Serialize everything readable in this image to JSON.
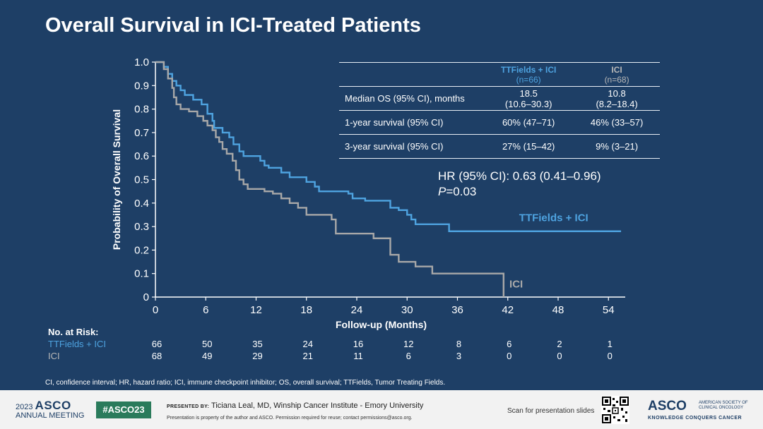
{
  "slide": {
    "title": "Overall Survival in ICI-Treated Patients",
    "hr_line": "HR (95% CI): 0.63 (0.41–0.96)",
    "p_label": "P",
    "p_value": "=0.03",
    "footnote": "CI, confidence interval; HR, hazard ratio; ICI, immune checkpoint inhibitor; OS, overall survival; TTFields, Tumor Treating Fields."
  },
  "stats_table": {
    "headers": [
      {
        "name": "TTFields + ICI",
        "n": "(n=66)"
      },
      {
        "name": "ICI",
        "n": "(n=68)"
      }
    ],
    "rows": [
      {
        "label": "Median OS (95% CI), months",
        "a": "18.5",
        "a2": "(10.6–30.3)",
        "b": "10.8",
        "b2": "(8.2–18.4)"
      },
      {
        "label": "1-year survival (95% CI)",
        "a": "60% (47–71)",
        "a2": "",
        "b": "46% (33–57)",
        "b2": ""
      },
      {
        "label": "3-year survival (95% CI)",
        "a": "27% (15–42)",
        "a2": "",
        "b": "9% (3–21)",
        "b2": ""
      }
    ]
  },
  "risk_table": {
    "header": "No. at Risk:",
    "rows": [
      {
        "label": "TTFields + ICI",
        "values": [
          "66",
          "50",
          "35",
          "24",
          "16",
          "12",
          "8",
          "6",
          "2",
          "1"
        ]
      },
      {
        "label": "ICI",
        "values": [
          "68",
          "49",
          "29",
          "21",
          "11",
          "6",
          "3",
          "0",
          "0",
          "0"
        ]
      }
    ]
  },
  "colors": {
    "background": "#1e3f66",
    "ttfields": "#4ea3e0",
    "ici": "#a8a8a8",
    "axis": "#ffffff"
  },
  "chart_data": {
    "type": "line",
    "title": "",
    "xlabel": "Follow-up (Months)",
    "ylabel": "Probability of Overall Survival",
    "xlim": [
      0,
      56
    ],
    "ylim": [
      0,
      1.0
    ],
    "xticks": [
      0,
      6,
      12,
      18,
      24,
      30,
      36,
      42,
      48,
      54
    ],
    "yticks": [
      0,
      0.1,
      0.2,
      0.3,
      0.4,
      0.5,
      0.6,
      0.7,
      0.8,
      0.9,
      1.0
    ],
    "ytick_labels": [
      "0",
      "0.1",
      "0.2",
      "0.3",
      "0.4",
      "0.5",
      "0.6",
      "0.7",
      "0.8",
      "0.9",
      "1.0"
    ],
    "grid": false,
    "series": [
      {
        "name": "TTFields + ICI",
        "step_points": [
          [
            0,
            1.0
          ],
          [
            1,
            0.98
          ],
          [
            1.5,
            0.95
          ],
          [
            2,
            0.92
          ],
          [
            2.5,
            0.9
          ],
          [
            3,
            0.88
          ],
          [
            3.5,
            0.86
          ],
          [
            4.5,
            0.84
          ],
          [
            5.5,
            0.82
          ],
          [
            6.2,
            0.78
          ],
          [
            6.8,
            0.75
          ],
          [
            7,
            0.72
          ],
          [
            8,
            0.7
          ],
          [
            8.8,
            0.68
          ],
          [
            9.3,
            0.65
          ],
          [
            10,
            0.62
          ],
          [
            10.5,
            0.6
          ],
          [
            12.5,
            0.58
          ],
          [
            13,
            0.56
          ],
          [
            13.5,
            0.55
          ],
          [
            15,
            0.53
          ],
          [
            16,
            0.51
          ],
          [
            18,
            0.49
          ],
          [
            19,
            0.47
          ],
          [
            19.5,
            0.45
          ],
          [
            23,
            0.44
          ],
          [
            23.5,
            0.42
          ],
          [
            25,
            0.41
          ],
          [
            28,
            0.38
          ],
          [
            29,
            0.37
          ],
          [
            30,
            0.35
          ],
          [
            30.5,
            0.33
          ],
          [
            31,
            0.31
          ],
          [
            35,
            0.28
          ],
          [
            55.5,
            0.28
          ]
        ]
      },
      {
        "name": "ICI",
        "step_points": [
          [
            0,
            1.0
          ],
          [
            1,
            0.97
          ],
          [
            1.5,
            0.93
          ],
          [
            2,
            0.89
          ],
          [
            2.2,
            0.85
          ],
          [
            2.5,
            0.82
          ],
          [
            3,
            0.8
          ],
          [
            4,
            0.79
          ],
          [
            5,
            0.77
          ],
          [
            5.7,
            0.75
          ],
          [
            6.2,
            0.73
          ],
          [
            6.8,
            0.71
          ],
          [
            7.2,
            0.68
          ],
          [
            7.6,
            0.66
          ],
          [
            8,
            0.63
          ],
          [
            8.5,
            0.61
          ],
          [
            9.2,
            0.58
          ],
          [
            9.6,
            0.54
          ],
          [
            10,
            0.5
          ],
          [
            10.5,
            0.48
          ],
          [
            11,
            0.46
          ],
          [
            13,
            0.45
          ],
          [
            14,
            0.44
          ],
          [
            15,
            0.42
          ],
          [
            16,
            0.4
          ],
          [
            17,
            0.38
          ],
          [
            18,
            0.35
          ],
          [
            21,
            0.33
          ],
          [
            21.5,
            0.27
          ],
          [
            26,
            0.25
          ],
          [
            28,
            0.18
          ],
          [
            29,
            0.15
          ],
          [
            31,
            0.13
          ],
          [
            33,
            0.1
          ],
          [
            41.5,
            0.1
          ],
          [
            41.5,
            0.0
          ]
        ]
      }
    ],
    "annotations": [
      {
        "text": "TTFields + ICI",
        "x": 50,
        "y": 0.32,
        "series": "TTFields + ICI"
      },
      {
        "text": "ICI",
        "x": 43,
        "y": 0.04,
        "series": "ICI"
      }
    ]
  },
  "footer": {
    "year": "2023",
    "asco": "ASCO",
    "meeting": "ANNUAL MEETING",
    "hashtag": "#ASCO23",
    "presented_by": "PRESENTED BY:",
    "presenter": "Ticiana Leal, MD, Winship Cancer Institute - Emory University",
    "property": "Presentation is property of the author and ASCO. Permission required for reuse; contact permissions@asco.org.",
    "scan": "Scan for presentation slides",
    "logo": "ASCO",
    "society": "AMERICAN SOCIETY OF CLINICAL ONCOLOGY",
    "slogan": "KNOWLEDGE CONQUERS CANCER"
  }
}
